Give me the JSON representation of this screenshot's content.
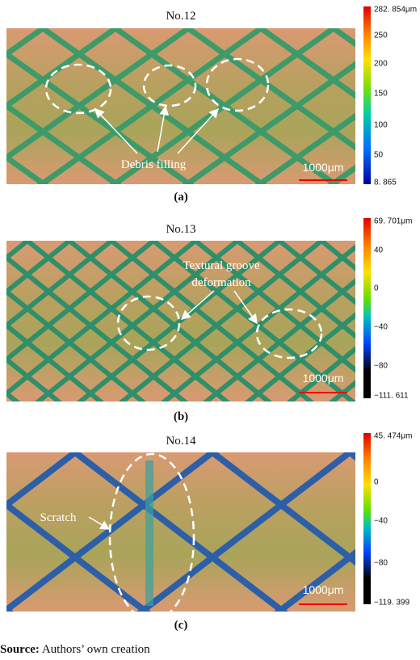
{
  "panels": [
    {
      "title": "No.12",
      "annotation": [
        "Debris filling"
      ],
      "scale_bar": "1000μm",
      "colorbar": {
        "max": "282. 854μm",
        "ticks": [
          "250",
          "200",
          "150",
          "100",
          "50"
        ],
        "min": "8. 865"
      },
      "caption": "(a)"
    },
    {
      "title": "No.13",
      "annotation": [
        "Textural groove",
        "deformation"
      ],
      "scale_bar": "1000μm",
      "colorbar": {
        "max": "69. 701μm",
        "ticks": [
          "40",
          "0",
          "−40",
          "−80"
        ],
        "min": "−111. 611"
      },
      "caption": "(b)"
    },
    {
      "title": "No.14",
      "annotation": [
        "Scratch"
      ],
      "scale_bar": "1000μm",
      "colorbar": {
        "max": "45. 474μm",
        "ticks": [
          "0",
          "−40",
          "−80"
        ],
        "min": "−119. 399"
      },
      "caption": "(c)"
    }
  ],
  "source": {
    "label": "Source:",
    "text": "Authors’ own creation"
  }
}
